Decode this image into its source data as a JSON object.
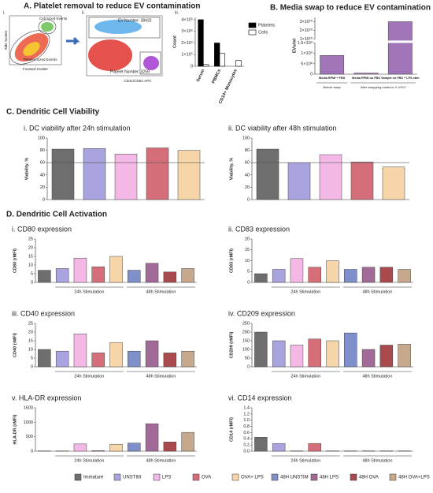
{
  "panel_a": {
    "title": "A. Platelet removal to reduce EV contamination",
    "labels": [
      "i.",
      "ii.",
      "iii."
    ],
    "plot1": {
      "gate1": "Cell Sized Events",
      "gate2": "Platelet Sized Events",
      "ylabel": "Side Scatter",
      "xlabel": "Forward Scatter"
    },
    "plot2": {
      "count1": "EV Number: 38432",
      "count2": "Platelet Number: 3259",
      "xlabel": "CD41/CD61-APC"
    }
  },
  "section_c": "C. Dendritic Cell Viability",
  "section_d": "D. Dendritic Cell Activation",
  "legend": [
    {
      "name": "Immature",
      "color": "#6e6e6e"
    },
    {
      "name": "UNSTIM",
      "color": "#a9a4e0"
    },
    {
      "name": "LPS",
      "color": "#f3b8e6"
    },
    {
      "name": "OVA",
      "color": "#d46e78"
    },
    {
      "name": "OVA+ LPS",
      "color": "#f6d6a8"
    },
    {
      "name": "48H UNSTIM",
      "color": "#7f8fca"
    },
    {
      "name": "48H LPS",
      "color": "#a26a96"
    },
    {
      "name": "48H OVA",
      "color": "#a94a4e"
    },
    {
      "name": "48H OVA+LPS",
      "color": "#c6a98c"
    }
  ],
  "chart_data": [
    {
      "type": "bar",
      "ylabel": "Count",
      "categories": [
        "Serum",
        "PBMCs",
        "CD14+ Monocytes"
      ],
      "series": [
        {
          "name": "Platelets",
          "color": "#000000",
          "values": [
            400000,
            200000,
            0
          ]
        },
        {
          "name": "Cells",
          "color": "#ffffff",
          "values": [
            15000,
            110000,
            50000
          ]
        }
      ],
      "ylim": [
        0,
        420000
      ],
      "yticks": [
        0,
        {
          "value": 100000,
          "label": "1×10⁵"
        },
        {
          "value": 200000,
          "label": "2×10⁵"
        },
        {
          "value": 300000,
          "label": "3×10⁵"
        },
        {
          "value": 400000,
          "label": "4×10⁵"
        }
      ]
    },
    {
      "type": "bar",
      "title": "B. Media swap to reduce EV contamination",
      "ylabel": "EVs/ml",
      "broken": true,
      "color": "#a076b8",
      "categories": [
        "Media RPMI + FBS",
        "Media RPMI no FBS",
        "Sample no FBS + LPS stim"
      ],
      "values": [
        900000000,
        50000000,
        30000000000
      ],
      "groups": [
        "Before swap",
        "After swapping media to X-VIVO"
      ],
      "ylim": [
        0,
        1500000000
      ],
      "yticks": [
        0,
        {
          "value": 500000000,
          "label": "5×10⁸"
        },
        {
          "value": 1000000000,
          "label": "1×10⁹"
        },
        {
          "value": 1500000000,
          "label": "1.5×10⁹"
        }
      ],
      "ylim_upper": [
        10000000000,
        35000000000
      ],
      "yticks_upper": [
        {
          "value": 10000000000,
          "label": "1×10¹⁰"
        },
        {
          "value": 20000000000,
          "label": "2×10¹⁰"
        },
        {
          "value": 30000000000,
          "label": "3×10¹⁰"
        }
      ]
    },
    {
      "type": "bar",
      "title": "i. DC viability after 24h stimulation",
      "ylabel": "Viability, %",
      "values": [
        82,
        83,
        74,
        84,
        80
      ],
      "ylim": [
        0,
        100
      ],
      "yticks": [
        0,
        20,
        40,
        60,
        80,
        100
      ],
      "reference_line": 60
    },
    {
      "type": "bar",
      "title": "ii. DC viability after 48h stimulation",
      "ylabel": "Viability, %",
      "values": [
        82,
        60,
        73,
        61,
        53
      ],
      "ylim": [
        0,
        100
      ],
      "yticks": [
        0,
        20,
        40,
        60,
        80,
        100
      ],
      "reference_line": 60
    },
    {
      "type": "bar",
      "title": "i. CD80 expression",
      "ylabel": "CD80 (rMFI)",
      "values": [
        7,
        8,
        14,
        9,
        15,
        7,
        11,
        6,
        8
      ],
      "groups": [
        "24h Stimulation",
        "48h Stimulation"
      ],
      "ylim": [
        0,
        25
      ],
      "yticks": [
        0,
        5,
        10,
        15,
        20,
        25
      ]
    },
    {
      "type": "bar",
      "title": "ii. CD83 expression",
      "ylabel": "CD83 (rMFI)",
      "values": [
        4,
        6,
        11,
        7,
        10,
        6,
        7,
        7,
        6
      ],
      "groups": [
        "24h Stimulation",
        "48h Stimulation"
      ],
      "ylim": [
        0,
        20
      ],
      "yticks": [
        0,
        5,
        10,
        15,
        20
      ]
    },
    {
      "type": "bar",
      "title": "iii. CD40 expression",
      "ylabel": "CD40 (rMFI)",
      "values": [
        10,
        9,
        19,
        8,
        14,
        9,
        15,
        8,
        9
      ],
      "groups": [
        "24h Stimulation",
        "48h Stimulation"
      ],
      "ylim": [
        0,
        25
      ],
      "yticks": [
        0,
        5,
        10,
        15,
        20,
        25
      ]
    },
    {
      "type": "bar",
      "title": "iv. CD209 expression",
      "ylabel": "CD209 (rMFI)",
      "values": [
        200,
        150,
        125,
        160,
        150,
        195,
        100,
        125,
        130
      ],
      "groups": [
        "24h Stimulation",
        "48h Stimulation"
      ],
      "ylim": [
        0,
        250
      ],
      "yticks": [
        0,
        50,
        100,
        150,
        200,
        250
      ]
    },
    {
      "type": "bar",
      "title": "v. HLA-DR expression",
      "ylabel": "HLA-DR (rMFI)",
      "values": [
        10,
        10,
        250,
        20,
        240,
        280,
        950,
        320,
        650
      ],
      "groups": [
        "24h Stimulation",
        "48h Stimulation"
      ],
      "ylim": [
        0,
        1500
      ],
      "yticks": [
        0,
        500,
        1000,
        1500
      ]
    },
    {
      "type": "bar",
      "title": "vi. CD14 expression",
      "ylabel": "CD14 (rMFI)",
      "values": [
        0.45,
        0.25,
        0.01,
        0.25,
        0.01,
        0.01,
        0.01,
        0.01,
        0.01
      ],
      "groups": [
        "24h Stimulation",
        "48h Stimulation"
      ],
      "ylim": [
        0,
        1.4
      ],
      "yticks": [
        {
          "value": 0,
          "label": "0.0"
        },
        0.2,
        0.4,
        0.6,
        0.8,
        {
          "value": 1,
          "label": "1.0"
        },
        1.2,
        1.4
      ]
    }
  ]
}
